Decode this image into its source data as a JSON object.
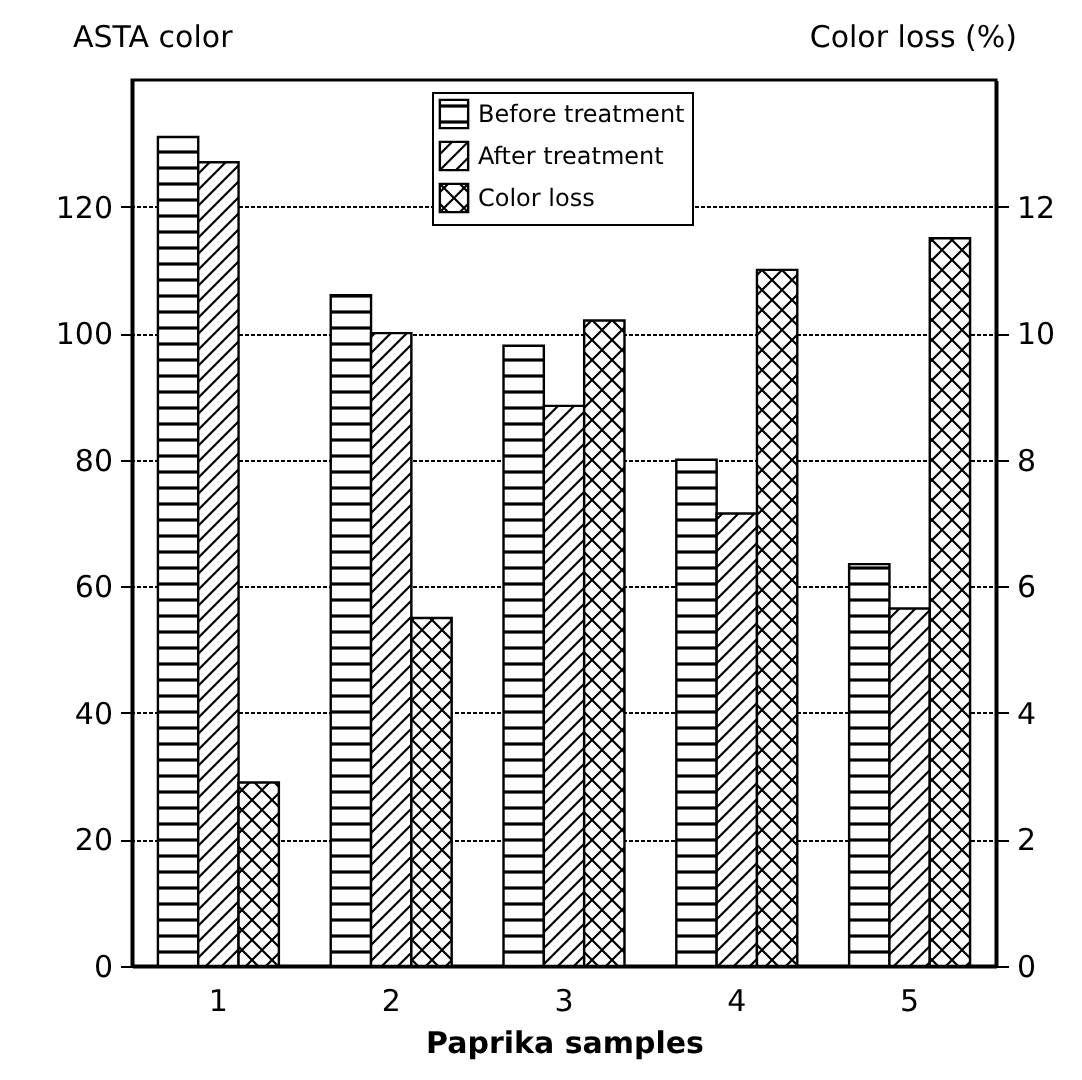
{
  "chart_data": {
    "type": "bar",
    "xlabel": "Paprika samples",
    "ylabel": "ASTA color",
    "y2label": "Color loss (%)",
    "categories": [
      "1",
      "2",
      "3",
      "4",
      "5"
    ],
    "series": [
      {
        "name": "Before treatment",
        "color": "#000000",
        "values": [
          131,
          106,
          98,
          80,
          63.5
        ]
      },
      {
        "name": "After treatment",
        "color": "#000000",
        "values": [
          127,
          100,
          88.5,
          71.5,
          56.5
        ]
      },
      {
        "name": "Color loss",
        "color": "#000000",
        "axis": "y2",
        "values": [
          2.9,
          5.5,
          10.2,
          11,
          11.5
        ]
      }
    ],
    "ylim": [
      0,
      140
    ],
    "yticks": [
      0,
      20,
      40,
      60,
      80,
      100,
      120
    ],
    "y2lim": [
      0,
      14
    ],
    "y2ticks": [
      0,
      2,
      4,
      6,
      8,
      10,
      12
    ],
    "grid": "y",
    "legend": "top"
  }
}
